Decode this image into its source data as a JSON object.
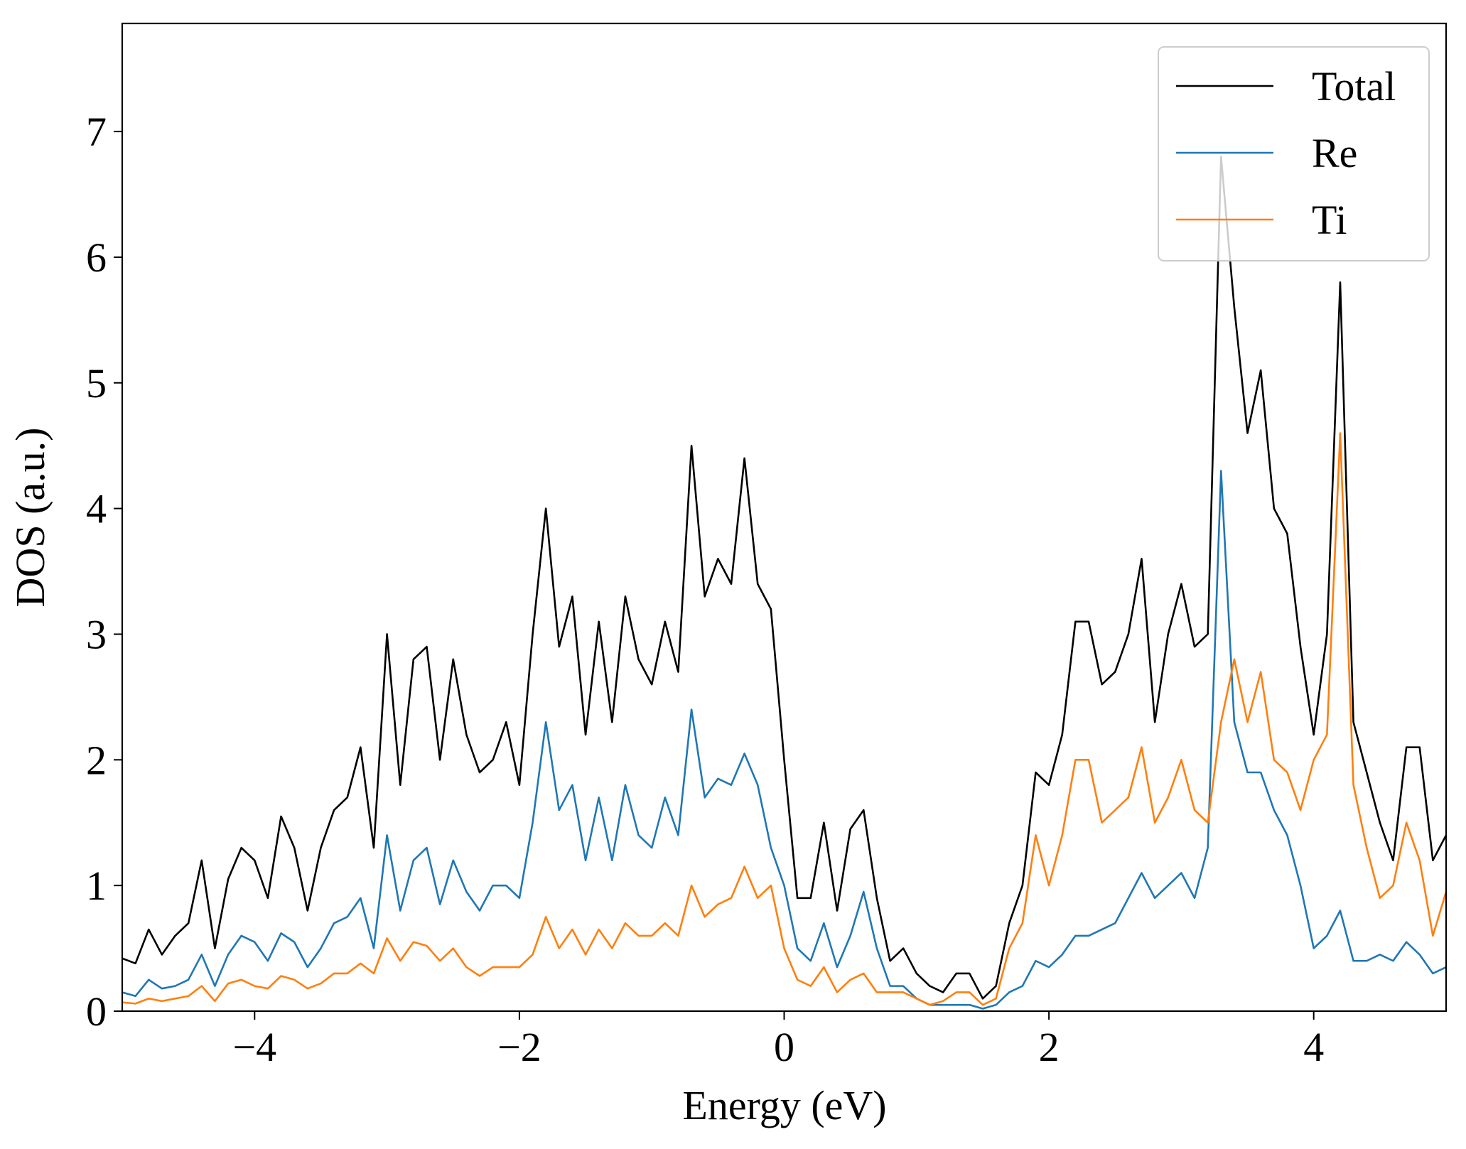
{
  "chart_data": {
    "type": "line",
    "xlabel": "Energy (eV)",
    "ylabel": "DOS (a.u.)",
    "x": [
      -5.0,
      -4.9,
      -4.8,
      -4.7,
      -4.6,
      -4.5,
      -4.4,
      -4.3,
      -4.2,
      -4.1,
      -4.0,
      -3.9,
      -3.8,
      -3.7,
      -3.6,
      -3.5,
      -3.4,
      -3.3,
      -3.2,
      -3.1,
      -3.0,
      -2.9,
      -2.8,
      -2.7,
      -2.6,
      -2.5,
      -2.4,
      -2.3,
      -2.2,
      -2.1,
      -2.0,
      -1.9,
      -1.8,
      -1.7,
      -1.6,
      -1.5,
      -1.4,
      -1.3,
      -1.2,
      -1.1,
      -1.0,
      -0.9,
      -0.8,
      -0.7,
      -0.6,
      -0.5,
      -0.4,
      -0.3,
      -0.2,
      -0.1,
      0.0,
      0.1,
      0.2,
      0.3,
      0.4,
      0.5,
      0.6,
      0.7,
      0.8,
      0.9,
      1.0,
      1.1,
      1.2,
      1.3,
      1.4,
      1.5,
      1.6,
      1.7,
      1.8,
      1.9,
      2.0,
      2.1,
      2.2,
      2.3,
      2.4,
      2.5,
      2.6,
      2.7,
      2.8,
      2.9,
      3.0,
      3.1,
      3.2,
      3.3,
      3.4,
      3.5,
      3.6,
      3.7,
      3.8,
      3.9,
      4.0,
      4.1,
      4.2,
      4.3,
      4.4,
      4.5,
      4.6,
      4.7,
      4.8,
      4.9,
      5.0
    ],
    "series": [
      {
        "name": "Total",
        "color": "#000000",
        "values": [
          0.42,
          0.38,
          0.65,
          0.45,
          0.6,
          0.7,
          1.2,
          0.5,
          1.05,
          1.3,
          1.2,
          0.9,
          1.55,
          1.3,
          0.8,
          1.3,
          1.6,
          1.7,
          2.1,
          1.3,
          3.0,
          1.8,
          2.8,
          2.9,
          2.0,
          2.8,
          2.2,
          1.9,
          2.0,
          2.3,
          1.8,
          3.0,
          4.0,
          2.9,
          3.3,
          2.2,
          3.1,
          2.3,
          3.3,
          2.8,
          2.6,
          3.1,
          2.7,
          4.5,
          3.3,
          3.6,
          3.4,
          4.4,
          3.4,
          3.2,
          2.0,
          0.9,
          0.9,
          1.5,
          0.8,
          1.45,
          1.6,
          0.9,
          0.4,
          0.5,
          0.3,
          0.2,
          0.15,
          0.3,
          0.3,
          0.1,
          0.2,
          0.7,
          1.0,
          1.9,
          1.8,
          2.2,
          3.1,
          3.1,
          2.6,
          2.7,
          3.0,
          3.6,
          2.3,
          3.0,
          3.4,
          2.9,
          3.0,
          6.8,
          5.6,
          4.6,
          5.1,
          4.0,
          3.8,
          2.9,
          2.2,
          3.0,
          5.8,
          2.3,
          1.9,
          1.5,
          1.2,
          2.1,
          2.1,
          1.2,
          1.4
        ]
      },
      {
        "name": "Re",
        "color": "#1f77b4",
        "values": [
          0.15,
          0.12,
          0.25,
          0.18,
          0.2,
          0.25,
          0.45,
          0.2,
          0.45,
          0.6,
          0.55,
          0.4,
          0.62,
          0.55,
          0.35,
          0.5,
          0.7,
          0.75,
          0.9,
          0.5,
          1.4,
          0.8,
          1.2,
          1.3,
          0.85,
          1.2,
          0.95,
          0.8,
          1.0,
          1.0,
          0.9,
          1.5,
          2.3,
          1.6,
          1.8,
          1.2,
          1.7,
          1.2,
          1.8,
          1.4,
          1.3,
          1.7,
          1.4,
          2.4,
          1.7,
          1.85,
          1.8,
          2.05,
          1.8,
          1.3,
          1.0,
          0.5,
          0.4,
          0.7,
          0.35,
          0.6,
          0.95,
          0.5,
          0.2,
          0.2,
          0.1,
          0.05,
          0.05,
          0.05,
          0.05,
          0.02,
          0.05,
          0.15,
          0.2,
          0.4,
          0.35,
          0.45,
          0.6,
          0.6,
          0.65,
          0.7,
          0.9,
          1.1,
          0.9,
          1.0,
          1.1,
          0.9,
          1.3,
          4.3,
          2.3,
          1.9,
          1.9,
          1.6,
          1.4,
          1.0,
          0.5,
          0.6,
          0.8,
          0.4,
          0.4,
          0.45,
          0.4,
          0.55,
          0.45,
          0.3,
          0.35
        ]
      },
      {
        "name": "Ti",
        "color": "#ff7f0e",
        "values": [
          0.07,
          0.06,
          0.1,
          0.08,
          0.1,
          0.12,
          0.2,
          0.08,
          0.22,
          0.25,
          0.2,
          0.18,
          0.28,
          0.25,
          0.18,
          0.22,
          0.3,
          0.3,
          0.38,
          0.3,
          0.58,
          0.4,
          0.55,
          0.52,
          0.4,
          0.5,
          0.35,
          0.28,
          0.35,
          0.35,
          0.35,
          0.45,
          0.75,
          0.5,
          0.65,
          0.45,
          0.65,
          0.5,
          0.7,
          0.6,
          0.6,
          0.7,
          0.6,
          1.0,
          0.75,
          0.85,
          0.9,
          1.15,
          0.9,
          1.0,
          0.5,
          0.25,
          0.2,
          0.35,
          0.15,
          0.25,
          0.3,
          0.15,
          0.15,
          0.15,
          0.1,
          0.05,
          0.08,
          0.15,
          0.15,
          0.05,
          0.1,
          0.5,
          0.7,
          1.4,
          1.0,
          1.4,
          2.0,
          2.0,
          1.5,
          1.6,
          1.7,
          2.1,
          1.5,
          1.7,
          2.0,
          1.6,
          1.5,
          2.3,
          2.8,
          2.3,
          2.7,
          2.0,
          1.9,
          1.6,
          2.0,
          2.2,
          4.6,
          1.8,
          1.3,
          0.9,
          1.0,
          1.5,
          1.2,
          0.6,
          0.95
        ]
      }
    ],
    "xlim": [
      -5,
      5
    ],
    "xticks": [
      {
        "value": -4,
        "label": "−4"
      },
      {
        "value": -2,
        "label": "−2"
      },
      0,
      2,
      4
    ],
    "ylim": [
      0,
      7.86
    ],
    "yticks": [
      0,
      1,
      2,
      3,
      4,
      5,
      6,
      7
    ],
    "grid": false,
    "legend": "upper right"
  }
}
